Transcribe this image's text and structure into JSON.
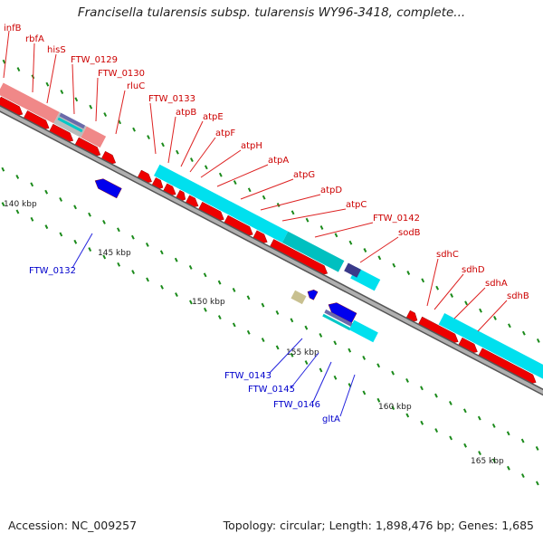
{
  "title": "Francisella tularensis subsp. tularensis WY96-3418, complete...",
  "footer": {
    "accession": "Accession: NC_009257",
    "topology": "Topology: circular; Length: 1,898,476 bp; Genes: 1,685"
  },
  "colors": {
    "backbone": "#8a8a8a",
    "forward_gene": "#ee0000",
    "reverse_gene": "#0000ee",
    "cds_cyan": "#00e0ee",
    "cds_pink": "#f08888",
    "cds_gray": "#bbbbbb",
    "tick_green": "#1a8a1a",
    "label_red": "#cc0000",
    "label_blue": "#0000cc"
  },
  "scale_labels": [
    "140 kbp",
    "145 kbp",
    "150 kbp",
    "155 kbp",
    "160 kbp",
    "165 kbp"
  ],
  "gene_labels_forward": [
    "infB",
    "rbfA",
    "hisS",
    "FTW_0129",
    "FTW_0130",
    "rluC",
    "FTW_0133",
    "atpB",
    "atpE",
    "atpF",
    "atpH",
    "atpA",
    "atpG",
    "atpD",
    "atpC",
    "FTW_0142",
    "sodB",
    "sdhC",
    "sdhD",
    "sdhA",
    "sdhB"
  ],
  "gene_labels_reverse": [
    "FTW_0132",
    "FTW_0143",
    "FTW_0145",
    "FTW_0146",
    "gltA"
  ]
}
